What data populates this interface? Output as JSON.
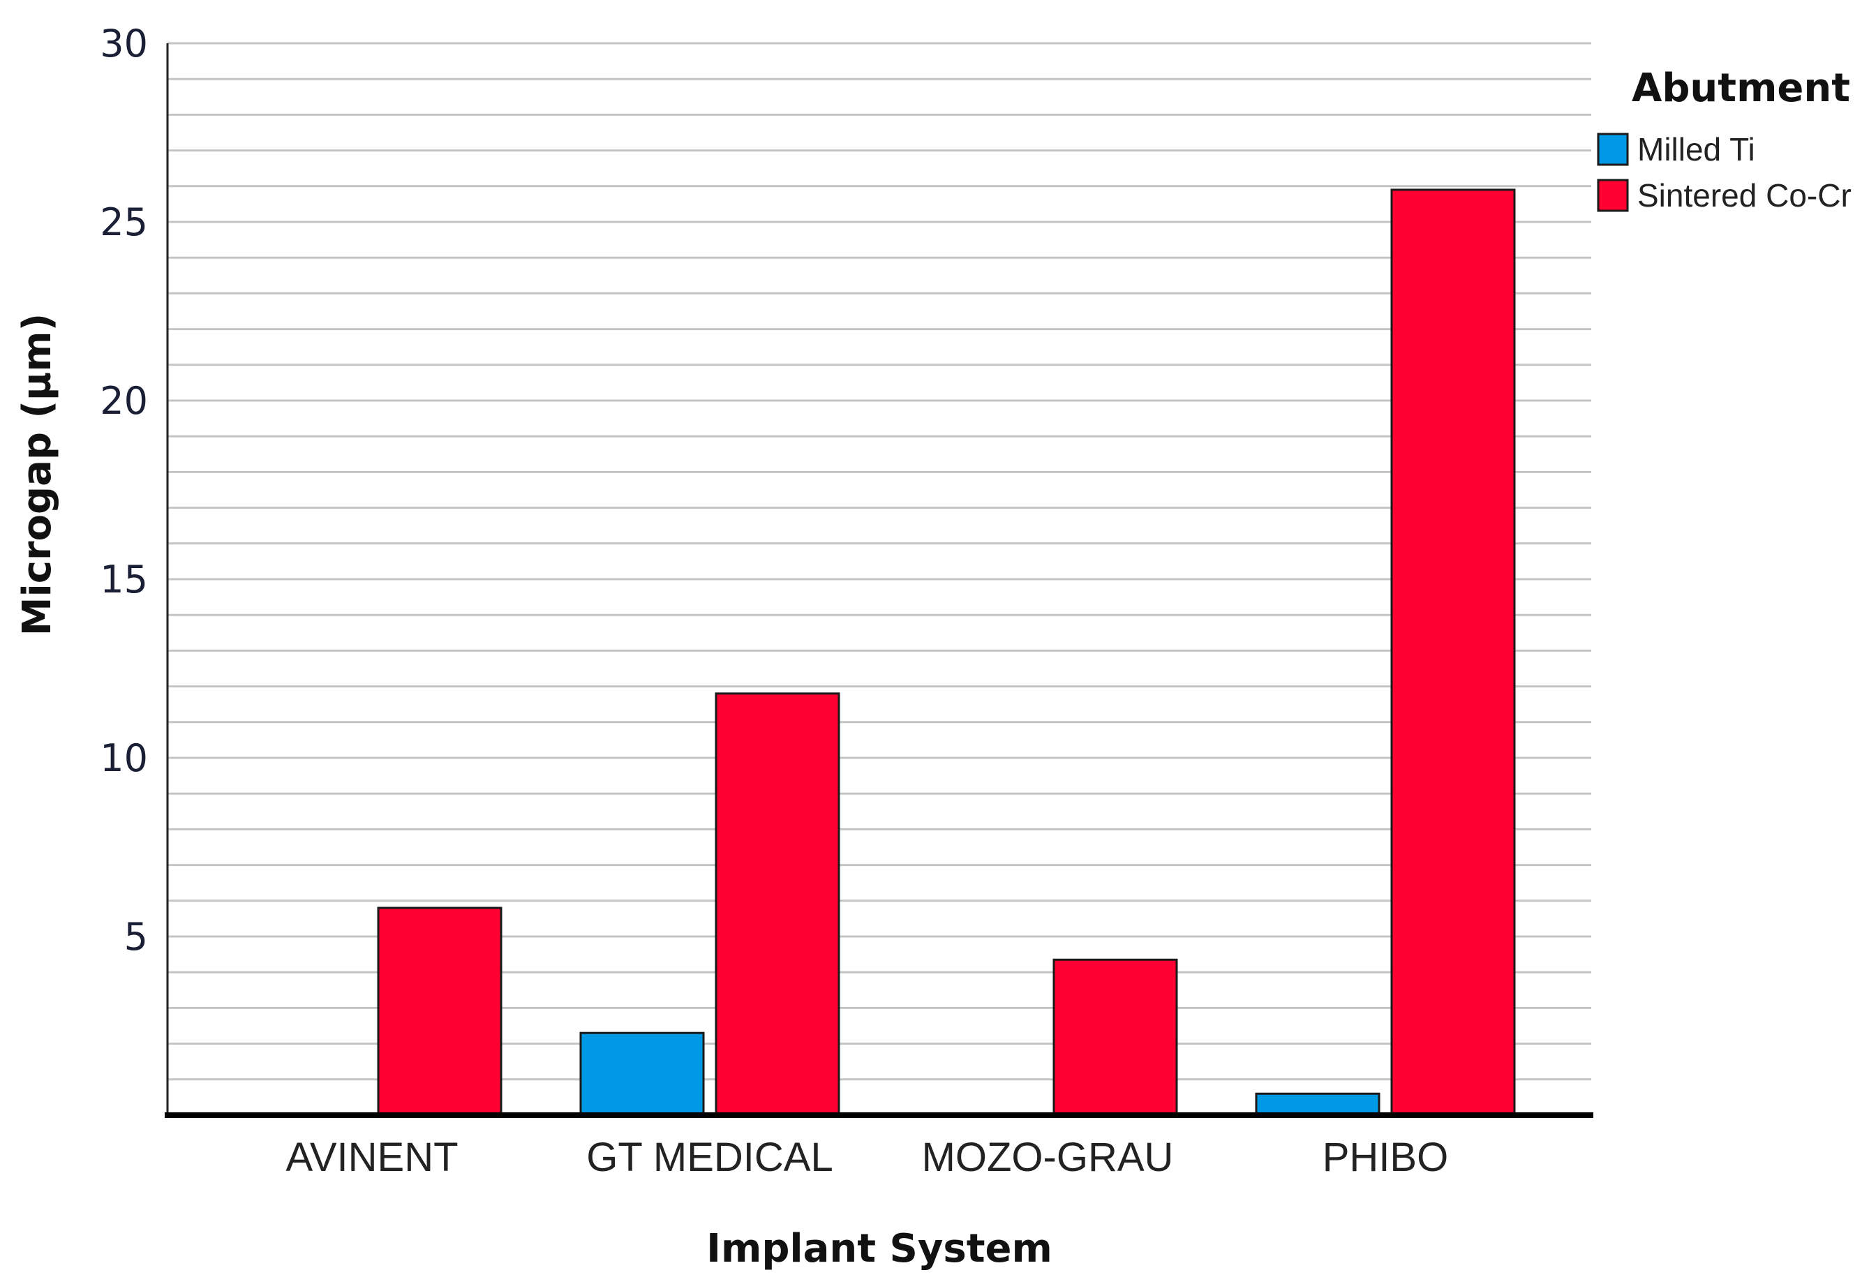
{
  "chart_data": {
    "type": "bar",
    "title": "",
    "xlabel": "Implant System",
    "ylabel": "Microgap (µm)",
    "categories": [
      "AVINENT",
      "GT MEDICAL",
      "MOZO-GRAU",
      "PHIBO"
    ],
    "series": [
      {
        "name": "Milled Ti",
        "color": "#0099e6",
        "values": [
          0,
          2.3,
          0,
          0.6
        ]
      },
      {
        "name": "Sintered Co-Cr",
        "color": "#ff0033",
        "values": [
          5.8,
          11.8,
          4.35,
          25.9
        ]
      }
    ],
    "ylim": [
      0,
      30
    ],
    "yticks": [
      5,
      10,
      15,
      20,
      25,
      30
    ],
    "y_gridline_step": 1,
    "grid": true,
    "legend": {
      "title": "Abutment",
      "placement": "top-right"
    }
  }
}
